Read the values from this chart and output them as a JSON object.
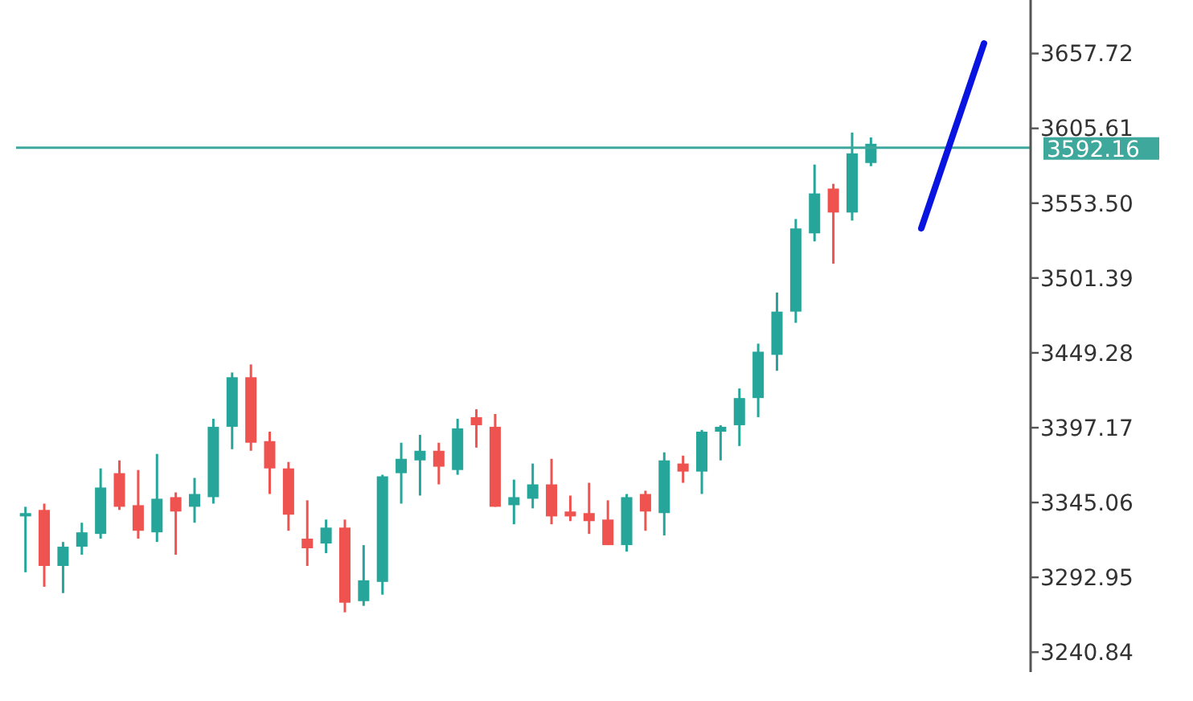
{
  "chart_data": {
    "type": "candlestick",
    "categories": [
      null,
      null,
      null,
      null,
      null,
      null,
      null,
      null,
      null,
      null,
      null,
      null,
      null,
      null,
      null,
      null,
      null,
      null,
      null,
      null,
      null,
      null,
      null,
      null,
      null,
      null,
      null,
      null,
      null,
      null,
      null,
      null,
      null,
      null,
      null,
      null,
      null,
      null,
      null,
      null,
      null,
      null,
      null,
      null,
      null,
      null,
      null,
      null,
      null,
      null,
      null,
      null,
      null,
      null
    ],
    "ohlc": [
      [
        3335.4,
        3342.1,
        3296.5,
        3337.7
      ],
      [
        3339.9,
        3344.3,
        3286.4,
        3300.9
      ],
      [
        3300.9,
        3317.6,
        3282.0,
        3314.3
      ],
      [
        3314.3,
        3331.0,
        3308.7,
        3324.3
      ],
      [
        3323.2,
        3368.8,
        3319.9,
        3355.5
      ],
      [
        3365.5,
        3374.4,
        3339.9,
        3342.1
      ],
      [
        3343.2,
        3367.7,
        3319.9,
        3325.4
      ],
      [
        3324.3,
        3378.9,
        3317.6,
        3347.7
      ],
      [
        3348.8,
        3352.1,
        3308.7,
        3338.8
      ],
      [
        3342.1,
        3362.2,
        3331.0,
        3351.0
      ],
      [
        3348.8,
        3403.4,
        3344.3,
        3397.8
      ],
      [
        3397.8,
        3435.6,
        3382.2,
        3432.3
      ],
      [
        3432.3,
        3441.2,
        3381.1,
        3386.7
      ],
      [
        3387.8,
        3394.4,
        3351.0,
        3368.8
      ],
      [
        3368.8,
        3373.3,
        3325.4,
        3336.6
      ],
      [
        3319.9,
        3346.6,
        3300.9,
        3313.2
      ],
      [
        3316.5,
        3333.2,
        3309.8,
        3327.6
      ],
      [
        3327.6,
        3333.2,
        3268.6,
        3275.3
      ],
      [
        3276.4,
        3315.4,
        3273.1,
        3290.9
      ],
      [
        3289.8,
        3364.4,
        3280.9,
        3363.3
      ],
      [
        3365.5,
        3386.7,
        3344.3,
        3375.5
      ],
      [
        3374.4,
        3392.2,
        3349.9,
        3381.1
      ],
      [
        3381.1,
        3386.7,
        3357.7,
        3370.0
      ],
      [
        3367.7,
        3403.4,
        3364.4,
        3396.7
      ],
      [
        3404.5,
        3410.0,
        3383.3,
        3398.9
      ],
      [
        3397.8,
        3406.7,
        3342.1,
        3342.1
      ],
      [
        3343.2,
        3361.0,
        3329.9,
        3348.8
      ],
      [
        3347.7,
        3372.2,
        3341.0,
        3357.7
      ],
      [
        3357.7,
        3375.5,
        3329.9,
        3335.4
      ],
      [
        3338.8,
        3349.9,
        3332.1,
        3335.4
      ],
      [
        3337.7,
        3358.8,
        3323.2,
        3332.1
      ],
      [
        3333.2,
        3346.6,
        3315.4,
        3315.4
      ],
      [
        3315.4,
        3351.0,
        3310.9,
        3348.8
      ],
      [
        3351.0,
        3353.3,
        3325.4,
        3338.8
      ],
      [
        3337.7,
        3380.0,
        3322.1,
        3374.4
      ],
      [
        3372.2,
        3377.7,
        3358.8,
        3366.6
      ],
      [
        3366.6,
        3395.6,
        3351.0,
        3394.4
      ],
      [
        3394.4,
        3398.9,
        3374.4,
        3397.8
      ],
      [
        3398.9,
        3424.5,
        3384.4,
        3417.8
      ],
      [
        3417.8,
        3455.7,
        3404.5,
        3450.1
      ],
      [
        3447.9,
        3491.3,
        3436.8,
        3478.0
      ],
      [
        3478.0,
        3542.5,
        3470.2,
        3535.9
      ],
      [
        3532.5,
        3580.4,
        3526.9,
        3560.3
      ],
      [
        3563.7,
        3567.0,
        3511.4,
        3547.0
      ],
      [
        3547.0,
        3602.7,
        3541.4,
        3588.2
      ],
      [
        3581.5,
        3599.3,
        3579.3,
        3594.9
      ],
      null,
      null,
      null,
      null,
      null,
      null,
      null,
      null
    ],
    "colors": [
      "#26a69a",
      "#ef5350",
      "#26a69a",
      "#26a69a",
      "#26a69a",
      "#ef5350",
      "#ef5350",
      "#26a69a",
      "#ef5350",
      "#26a69a",
      "#26a69a",
      "#26a69a",
      "#ef5350",
      "#ef5350",
      "#ef5350",
      "#ef5350",
      "#26a69a",
      "#ef5350",
      "#26a69a",
      "#26a69a",
      "#26a69a",
      "#26a69a",
      "#ef5350",
      "#26a69a",
      "#ef5350",
      "#ef5350",
      "#26a69a",
      "#26a69a",
      "#ef5350",
      "#ef5350",
      "#ef5350",
      "#ef5350",
      "#26a69a",
      "#ef5350",
      "#26a69a",
      "#ef5350",
      "#26a69a",
      "#26a69a",
      "#26a69a",
      "#26a69a",
      "#26a69a",
      "#26a69a",
      "#26a69a",
      "#ef5350",
      "#26a69a",
      "#26a69a",
      null,
      null,
      null,
      null,
      null,
      null,
      null,
      null
    ],
    "ylim": [
      3227,
      3695
    ],
    "yticks": [
      3240.84,
      3292.95,
      3345.06,
      3397.17,
      3449.28,
      3501.39,
      {
        "value": 3553.5,
        "label": "3553.50"
      },
      3605.61,
      3657.72
    ],
    "ref_lines": [
      {
        "axis": "y",
        "value": 3592.16,
        "label": "3592.16",
        "color": "#3fa89c"
      }
    ],
    "tick_labels": "y",
    "grid": false
  }
}
